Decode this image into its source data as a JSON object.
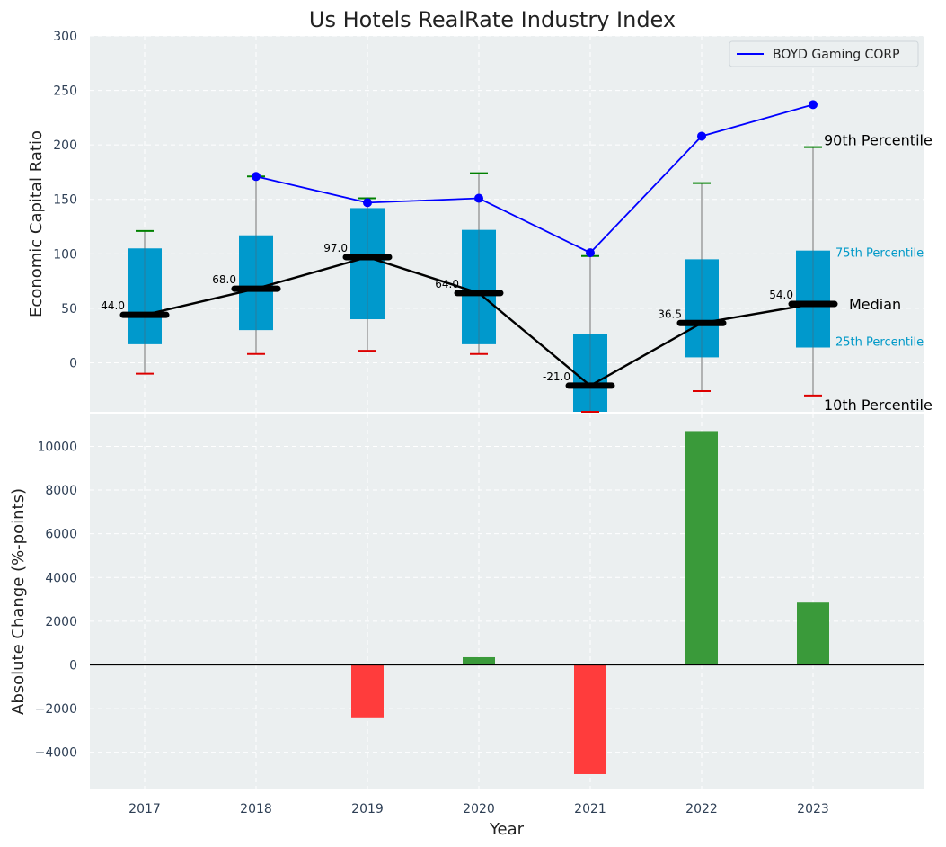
{
  "chart_data": [
    {
      "type": "box",
      "title": "Us Hotels RealRate Industry Index",
      "xlabel": "",
      "ylabel": "Economic Capital Ratio",
      "ylim": [
        -45,
        300
      ],
      "yticks": [
        0,
        50,
        100,
        150,
        200,
        250,
        300
      ],
      "categories": [
        "2017",
        "2018",
        "2019",
        "2020",
        "2021",
        "2022",
        "2023"
      ],
      "boxes": [
        {
          "p10": -10,
          "p25": 17,
          "median": 44,
          "p75": 105,
          "p90": 121
        },
        {
          "p10": 8,
          "p25": 30,
          "median": 68,
          "p75": 117,
          "p90": 171
        },
        {
          "p10": 11,
          "p25": 40,
          "median": 97,
          "p75": 142,
          "p90": 151
        },
        {
          "p10": 8,
          "p25": 17,
          "median": 64,
          "p75": 122,
          "p90": 174
        },
        {
          "p10": -45,
          "p25": -48,
          "median": -21,
          "p75": 26,
          "p90": 98
        },
        {
          "p10": -26,
          "p25": 5,
          "median": 36.5,
          "p75": 95,
          "p90": 165
        },
        {
          "p10": -30,
          "p25": 14,
          "median": 54,
          "p75": 103,
          "p90": 198
        }
      ],
      "median_labels": [
        "44.0",
        "68.0",
        "97.0",
        "64.0",
        "-21.0",
        "36.5",
        "54.0"
      ],
      "series": [
        {
          "name": "BOYD Gaming CORP",
          "values": [
            null,
            171,
            147,
            151,
            101,
            208,
            237
          ],
          "color": "#0000ff"
        }
      ],
      "legend_position": "top-right",
      "annotations": {
        "p90": "90th Percentile",
        "p75": "75th Percentile",
        "median": "Median",
        "p25": "25th Percentile",
        "p10": "10th Percentile"
      },
      "colors": {
        "box": "#0099cc",
        "median": "#000000",
        "p90_cap": "#008000",
        "p10_cap": "#dd0000",
        "series": "#0000ff"
      }
    },
    {
      "type": "bar",
      "xlabel": "Year",
      "ylabel": "Absolute Change (%-points)",
      "ylim": [
        -5700,
        11500
      ],
      "yticks": [
        -4000,
        -2000,
        0,
        2000,
        4000,
        6000,
        8000,
        10000
      ],
      "ytick_labels": [
        "−4000",
        "−2000",
        "0",
        "2000",
        "4000",
        "6000",
        "8000",
        "10000"
      ],
      "categories": [
        "2017",
        "2018",
        "2019",
        "2020",
        "2021",
        "2022",
        "2023"
      ],
      "values": [
        null,
        null,
        -2400,
        350,
        -5000,
        10700,
        2850
      ],
      "colors": {
        "positive": "#3a9a3a",
        "negative": "#ff3c3c"
      }
    }
  ]
}
